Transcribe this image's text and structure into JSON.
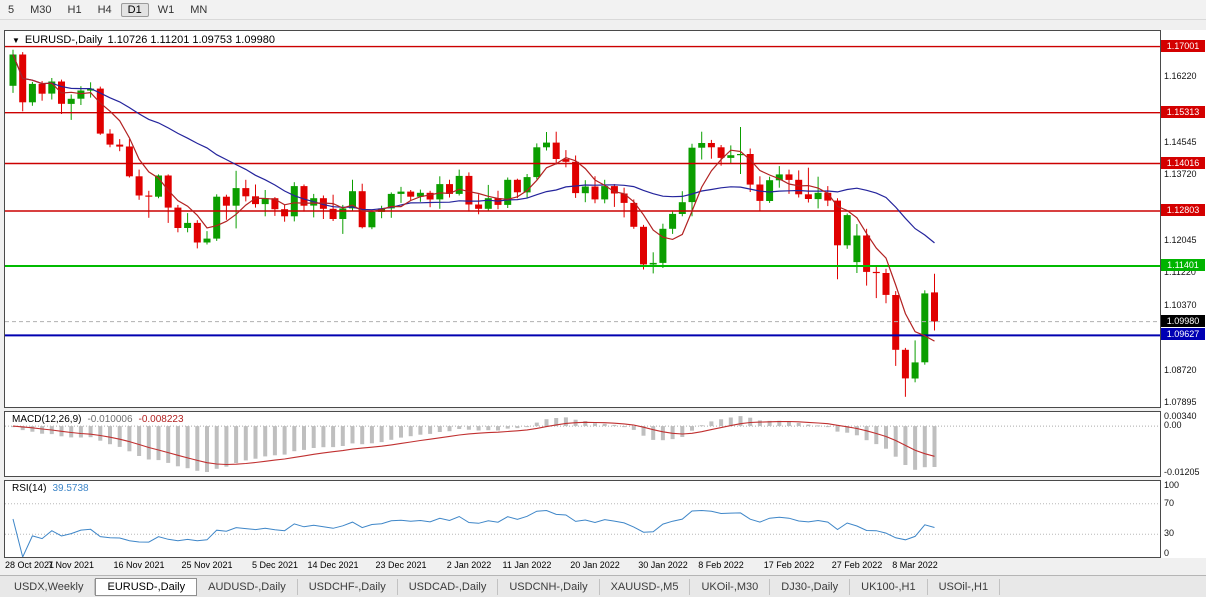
{
  "icons": {
    "dropdown": "▼"
  },
  "toolbar": {
    "timeframes": [
      {
        "label": "5",
        "active": false
      },
      {
        "label": "M30",
        "active": false
      },
      {
        "label": "H1",
        "active": false
      },
      {
        "label": "H4",
        "active": false
      },
      {
        "label": "D1",
        "active": true
      },
      {
        "label": "W1",
        "active": false
      },
      {
        "label": "MN",
        "active": false
      }
    ]
  },
  "chart": {
    "title": "EURUSD-,Daily",
    "ohlc_text": "1.10726 1.11201 1.09753 1.09980",
    "price_min": 1.078,
    "price_max": 1.174,
    "colors": {
      "up": "#0b9e00",
      "down": "#e00000",
      "ma_fast": "#b22222",
      "ma_slow": "#24249c"
    },
    "scale_labels": [
      "1.16220",
      "1.14545",
      "1.13720",
      "1.12045",
      "1.11220",
      "1.10370",
      "1.08720",
      "1.07895"
    ],
    "levels": [
      {
        "name": "resistance-line-1",
        "price": 1.17001,
        "color": "#cc0000",
        "width": 1.4
      },
      {
        "name": "resistance-line-2",
        "price": 1.15313,
        "color": "#cc0000",
        "width": 1.4
      },
      {
        "name": "resistance-line-3",
        "price": 1.14016,
        "color": "#cc0000",
        "width": 1.4
      },
      {
        "name": "resistance-line-4",
        "price": 1.12803,
        "color": "#cc0000",
        "width": 1.4
      },
      {
        "name": "support-line-green",
        "price": 1.11401,
        "color": "#00bb00",
        "width": 2
      },
      {
        "name": "current-price-line",
        "price": 1.0998,
        "color": "#b0b0b0",
        "width": 1,
        "dash": "4,3"
      },
      {
        "name": "support-line-blue",
        "price": 1.09627,
        "color": "#0000b0",
        "width": 2
      }
    ],
    "badges": [
      {
        "label": "1.17001",
        "price": 1.17001,
        "color": "#d40000",
        "name": "resistance-badge-1"
      },
      {
        "label": "1.15313",
        "price": 1.15313,
        "color": "#d40000",
        "name": "resistance-badge-2"
      },
      {
        "label": "1.14016",
        "price": 1.14016,
        "color": "#d40000",
        "name": "resistance-badge-3"
      },
      {
        "label": "1.12803",
        "price": 1.12803,
        "color": "#d40000",
        "name": "resistance-badge-4"
      },
      {
        "label": "1.11401",
        "price": 1.11401,
        "color": "#00b400",
        "name": "support-badge-green"
      },
      {
        "label": "1.09980",
        "price": 1.0998,
        "color": "#000000",
        "name": "current-price-badge"
      },
      {
        "label": "1.09627",
        "price": 1.09627,
        "color": "#0000b4",
        "name": "support-badge-blue"
      }
    ]
  },
  "macd": {
    "title": "MACD(12,26,9)",
    "main_value": "-0.010006",
    "signal_value": "-0.008223",
    "fast": 12,
    "slow": 26,
    "signal": 9,
    "scale": {
      "max": 0.0034,
      "min": -0.01205,
      "labels": [
        {
          "text": "0.00340",
          "value": 0.0034
        },
        {
          "text": "0.00",
          "value": 0
        },
        {
          "text": "-0.01205",
          "value": -0.01205
        }
      ]
    }
  },
  "rsi": {
    "title": "RSI(14)",
    "value": "39.5738",
    "period": 14,
    "levels": [
      70,
      30
    ],
    "scale_labels": [
      "100",
      "70",
      "30",
      "0"
    ]
  },
  "tabs": [
    {
      "label": "USDX,Weekly",
      "active": false
    },
    {
      "label": "EURUSD-,Daily",
      "active": true
    },
    {
      "label": "AUDUSD-,Daily",
      "active": false
    },
    {
      "label": "USDCHF-,Daily",
      "active": false
    },
    {
      "label": "USDCAD-,Daily",
      "active": false
    },
    {
      "label": "USDCNH-,Daily",
      "active": false
    },
    {
      "label": "XAUUSD-,M5",
      "active": false
    },
    {
      "label": "UKOil-,M30",
      "active": false
    },
    {
      "label": "DJ30-,Daily",
      "active": false
    },
    {
      "label": "UK100-,H1",
      "active": false
    },
    {
      "label": "USOil-,H1",
      "active": false
    }
  ],
  "chart_data": {
    "type": "candlestick",
    "title": "EURUSD-,Daily",
    "current_ohlc": {
      "open": 1.10726,
      "high": 1.11201,
      "low": 1.09753,
      "close": 1.0998
    },
    "overlays": {
      "ma_fast_period": 5,
      "ma_slow_period": 21
    },
    "x_labels": [
      {
        "text": "28 Oct 2021",
        "index": 0
      },
      {
        "text": "7 Nov 2021",
        "index": 6
      },
      {
        "text": "16 Nov 2021",
        "index": 13
      },
      {
        "text": "25 Nov 2021",
        "index": 20
      },
      {
        "text": "5 Dec 2021",
        "index": 27
      },
      {
        "text": "14 Dec 2021",
        "index": 33
      },
      {
        "text": "23 Dec 2021",
        "index": 40
      },
      {
        "text": "2 Jan 2022",
        "index": 47
      },
      {
        "text": "11 Jan 2022",
        "index": 53
      },
      {
        "text": "20 Jan 2022",
        "index": 60
      },
      {
        "text": "30 Jan 2022",
        "index": 67
      },
      {
        "text": "8 Feb 2022",
        "index": 73
      },
      {
        "text": "17 Feb 2022",
        "index": 80
      },
      {
        "text": "27 Feb 2022",
        "index": 87
      },
      {
        "text": "8 Mar 2022",
        "index": 93
      }
    ],
    "dates": [
      "2021-10-28",
      "2021-10-29",
      "2021-11-01",
      "2021-11-02",
      "2021-11-03",
      "2021-11-04",
      "2021-11-05",
      "2021-11-08",
      "2021-11-09",
      "2021-11-10",
      "2021-11-11",
      "2021-11-12",
      "2021-11-15",
      "2021-11-16",
      "2021-11-17",
      "2021-11-18",
      "2021-11-19",
      "2021-11-22",
      "2021-11-23",
      "2021-11-24",
      "2021-11-25",
      "2021-11-26",
      "2021-11-29",
      "2021-11-30",
      "2021-12-01",
      "2021-12-02",
      "2021-12-03",
      "2021-12-06",
      "2021-12-07",
      "2021-12-08",
      "2021-12-09",
      "2021-12-10",
      "2021-12-13",
      "2021-12-14",
      "2021-12-15",
      "2021-12-16",
      "2021-12-17",
      "2021-12-20",
      "2021-12-21",
      "2021-12-22",
      "2021-12-23",
      "2021-12-24",
      "2021-12-27",
      "2021-12-28",
      "2021-12-29",
      "2021-12-30",
      "2021-12-31",
      "2022-01-03",
      "2022-01-04",
      "2022-01-05",
      "2022-01-06",
      "2022-01-07",
      "2022-01-10",
      "2022-01-11",
      "2022-01-12",
      "2022-01-13",
      "2022-01-14",
      "2022-01-17",
      "2022-01-18",
      "2022-01-19",
      "2022-01-20",
      "2022-01-21",
      "2022-01-24",
      "2022-01-25",
      "2022-01-26",
      "2022-01-27",
      "2022-01-28",
      "2022-01-31",
      "2022-02-01",
      "2022-02-02",
      "2022-02-03",
      "2022-02-04",
      "2022-02-07",
      "2022-02-08",
      "2022-02-09",
      "2022-02-10",
      "2022-02-11",
      "2022-02-14",
      "2022-02-15",
      "2022-02-16",
      "2022-02-17",
      "2022-02-18",
      "2022-02-21",
      "2022-02-22",
      "2022-02-23",
      "2022-02-24",
      "2022-02-25",
      "2022-02-28",
      "2022-03-01",
      "2022-03-02",
      "2022-03-03",
      "2022-03-04",
      "2022-03-07",
      "2022-03-08",
      "2022-03-09",
      "2022-03-10"
    ],
    "candles": [
      [
        1.16,
        1.1692,
        1.1582,
        1.168
      ],
      [
        1.168,
        1.1686,
        1.1535,
        1.1558
      ],
      [
        1.1558,
        1.161,
        1.1549,
        1.1605
      ],
      [
        1.1605,
        1.1612,
        1.1562,
        1.158
      ],
      [
        1.158,
        1.162,
        1.1565,
        1.1611
      ],
      [
        1.1611,
        1.1616,
        1.1528,
        1.1554
      ],
      [
        1.1554,
        1.1578,
        1.1513,
        1.1567
      ],
      [
        1.1567,
        1.1599,
        1.1551,
        1.1588
      ],
      [
        1.1588,
        1.1609,
        1.157,
        1.1593
      ],
      [
        1.1593,
        1.1598,
        1.1475,
        1.1478
      ],
      [
        1.1478,
        1.1489,
        1.1443,
        1.145
      ],
      [
        1.145,
        1.1464,
        1.1433,
        1.1445
      ],
      [
        1.1445,
        1.1464,
        1.1366,
        1.1369
      ],
      [
        1.1369,
        1.1386,
        1.1309,
        1.132
      ],
      [
        1.132,
        1.1332,
        1.1263,
        1.1317
      ],
      [
        1.1317,
        1.1374,
        1.1313,
        1.1371
      ],
      [
        1.1371,
        1.1374,
        1.125,
        1.1289
      ],
      [
        1.1289,
        1.1296,
        1.1226,
        1.1237
      ],
      [
        1.1237,
        1.1275,
        1.1226,
        1.125
      ],
      [
        1.125,
        1.1257,
        1.1185,
        1.12
      ],
      [
        1.12,
        1.1229,
        1.1195,
        1.121
      ],
      [
        1.121,
        1.1323,
        1.1204,
        1.1317
      ],
      [
        1.1317,
        1.1322,
        1.1258,
        1.1294
      ],
      [
        1.1294,
        1.1383,
        1.1236,
        1.1339
      ],
      [
        1.1339,
        1.136,
        1.1305,
        1.1318
      ],
      [
        1.1318,
        1.1348,
        1.1289,
        1.1298
      ],
      [
        1.1298,
        1.1334,
        1.1267,
        1.1313
      ],
      [
        1.1313,
        1.1316,
        1.1268,
        1.1285
      ],
      [
        1.1285,
        1.1296,
        1.1253,
        1.1267
      ],
      [
        1.1267,
        1.1354,
        1.1254,
        1.1344
      ],
      [
        1.1344,
        1.1348,
        1.1279,
        1.1294
      ],
      [
        1.1294,
        1.1324,
        1.1264,
        1.1313
      ],
      [
        1.1313,
        1.132,
        1.126,
        1.1286
      ],
      [
        1.1286,
        1.1322,
        1.1255,
        1.126
      ],
      [
        1.126,
        1.1296,
        1.1222,
        1.1287
      ],
      [
        1.1287,
        1.136,
        1.128,
        1.1331
      ],
      [
        1.1331,
        1.135,
        1.1236,
        1.1239
      ],
      [
        1.1239,
        1.1282,
        1.1234,
        1.1278
      ],
      [
        1.1278,
        1.1294,
        1.1262,
        1.1287
      ],
      [
        1.1287,
        1.1328,
        1.1263,
        1.1324
      ],
      [
        1.1324,
        1.1342,
        1.1301,
        1.133
      ],
      [
        1.133,
        1.1334,
        1.1308,
        1.1317
      ],
      [
        1.1317,
        1.1335,
        1.1304,
        1.1327
      ],
      [
        1.1327,
        1.1332,
        1.129,
        1.131
      ],
      [
        1.131,
        1.1369,
        1.1286,
        1.1349
      ],
      [
        1.1349,
        1.136,
        1.1315,
        1.1324
      ],
      [
        1.1324,
        1.1386,
        1.132,
        1.137
      ],
      [
        1.137,
        1.1379,
        1.1279,
        1.1297
      ],
      [
        1.1297,
        1.1323,
        1.1272,
        1.1286
      ],
      [
        1.1286,
        1.1347,
        1.128,
        1.1313
      ],
      [
        1.1313,
        1.1332,
        1.1285,
        1.1296
      ],
      [
        1.1296,
        1.1366,
        1.1288,
        1.136
      ],
      [
        1.136,
        1.1363,
        1.1313,
        1.1328
      ],
      [
        1.1328,
        1.1375,
        1.1314,
        1.1367
      ],
      [
        1.1367,
        1.1453,
        1.1361,
        1.1443
      ],
      [
        1.1443,
        1.1482,
        1.1435,
        1.1455
      ],
      [
        1.1455,
        1.1483,
        1.1399,
        1.1413
      ],
      [
        1.1413,
        1.1436,
        1.1392,
        1.1406
      ],
      [
        1.1406,
        1.1422,
        1.1314,
        1.1326
      ],
      [
        1.1326,
        1.1359,
        1.1303,
        1.1343
      ],
      [
        1.1343,
        1.1369,
        1.13,
        1.131
      ],
      [
        1.131,
        1.136,
        1.13,
        1.1344
      ],
      [
        1.1344,
        1.1349,
        1.1291,
        1.1325
      ],
      [
        1.1325,
        1.134,
        1.1264,
        1.1301
      ],
      [
        1.1301,
        1.131,
        1.1235,
        1.124
      ],
      [
        1.124,
        1.1245,
        1.1131,
        1.1144
      ],
      [
        1.1144,
        1.1175,
        1.1121,
        1.1148
      ],
      [
        1.1148,
        1.1248,
        1.1135,
        1.1235
      ],
      [
        1.1235,
        1.1279,
        1.1222,
        1.1273
      ],
      [
        1.1273,
        1.1331,
        1.1267,
        1.1303
      ],
      [
        1.1303,
        1.1452,
        1.1267,
        1.1442
      ],
      [
        1.1442,
        1.1483,
        1.1412,
        1.1454
      ],
      [
        1.1454,
        1.1462,
        1.1414,
        1.1443
      ],
      [
        1.1443,
        1.1449,
        1.1396,
        1.1416
      ],
      [
        1.1416,
        1.1448,
        1.1403,
        1.1423
      ],
      [
        1.1423,
        1.1495,
        1.1375,
        1.1426
      ],
      [
        1.1426,
        1.144,
        1.1329,
        1.1348
      ],
      [
        1.1348,
        1.1369,
        1.128,
        1.1306
      ],
      [
        1.1306,
        1.1368,
        1.1301,
        1.1359
      ],
      [
        1.1359,
        1.1395,
        1.134,
        1.1374
      ],
      [
        1.1374,
        1.1386,
        1.1324,
        1.136
      ],
      [
        1.136,
        1.1384,
        1.1315,
        1.1323
      ],
      [
        1.1323,
        1.1391,
        1.1302,
        1.1311
      ],
      [
        1.1311,
        1.1368,
        1.1287,
        1.1327
      ],
      [
        1.1327,
        1.1344,
        1.1293,
        1.1307
      ],
      [
        1.1307,
        1.1313,
        1.1106,
        1.1193
      ],
      [
        1.1193,
        1.1274,
        1.1184,
        1.127
      ],
      [
        1.115,
        1.1247,
        1.1122,
        1.1218
      ],
      [
        1.1218,
        1.1235,
        1.109,
        1.1125
      ],
      [
        1.1125,
        1.114,
        1.1058,
        1.1122
      ],
      [
        1.1122,
        1.1133,
        1.1045,
        1.1066
      ],
      [
        1.1066,
        1.1076,
        1.0885,
        1.0926
      ],
      [
        1.0926,
        1.0931,
        1.0806,
        1.0853
      ],
      [
        1.0853,
        1.095,
        1.0843,
        1.0894
      ],
      [
        1.0894,
        1.1078,
        1.0888,
        1.107
      ],
      [
        1.10726,
        1.11201,
        1.09753,
        1.0998
      ]
    ]
  }
}
